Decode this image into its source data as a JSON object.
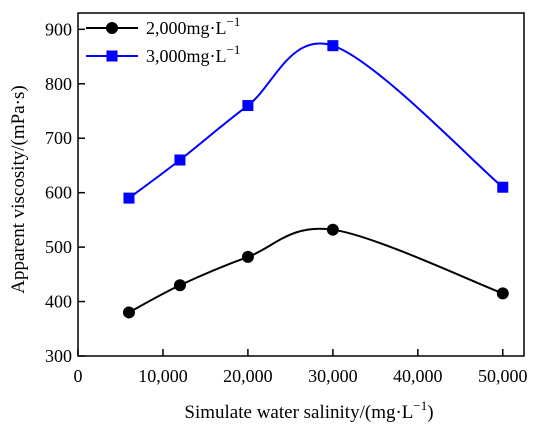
{
  "chart_data": {
    "type": "line",
    "title": "",
    "xlabel": "Simulate water salinity/(mg·L",
    "xlabel_sup": "−1",
    "xlabel_close": ")",
    "ylabel": "Apparent viscosity/(mPa·s)",
    "xlim": [
      0,
      52500
    ],
    "ylim": [
      300,
      930
    ],
    "x_ticks": [
      0,
      10000,
      20000,
      30000,
      40000,
      50000
    ],
    "x_tick_labels": [
      "0",
      "10,000",
      "20,000",
      "30,000",
      "40,000",
      "50,000"
    ],
    "y_ticks": [
      300,
      400,
      500,
      600,
      700,
      800,
      900
    ],
    "y_tick_labels": [
      "300",
      "400",
      "500",
      "600",
      "700",
      "800",
      "900"
    ],
    "grid": false,
    "legend_position": "top-left",
    "series": [
      {
        "name": "2,000mg·L",
        "name_sup": "−1",
        "marker": "circle",
        "color": "#000000",
        "x": [
          6000,
          12000,
          20000,
          30000,
          50000
        ],
        "y": [
          380,
          430,
          482,
          532,
          415
        ]
      },
      {
        "name": "3,000mg·L",
        "name_sup": "−1",
        "marker": "square",
        "color": "#0000ff",
        "x": [
          6000,
          12000,
          20000,
          30000,
          50000
        ],
        "y": [
          590,
          660,
          760,
          870,
          610
        ]
      }
    ]
  }
}
